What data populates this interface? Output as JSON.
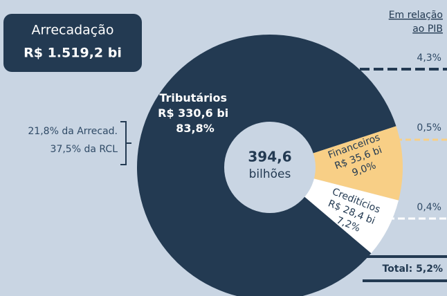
{
  "chart_data": {
    "type": "donut",
    "box_title": "Arrecadação",
    "box_value": "R$ 1.519,2 bi",
    "center_value": "394,6",
    "center_unit": "bilhões",
    "left_notes": [
      "21,8% da Arrecad.",
      "37,5% da RCL"
    ],
    "pib_header": [
      "Em relação",
      "ao PIB"
    ],
    "categories": [
      "Tributários",
      "Financeiros",
      "Creditícios"
    ],
    "values": [
      330.6,
      35.6,
      28.4
    ],
    "value_labels": [
      "R$ 330,6 bi",
      "R$ 35,6 bi",
      "R$ 28,4 bi"
    ],
    "percent_labels": [
      "83,8%",
      "9,0%",
      "7,2%"
    ],
    "colors": [
      "#233a52",
      "#f8cf86",
      "#ffffff"
    ],
    "pib_labels": [
      "4,3%",
      "0,5%",
      "0,4%"
    ],
    "pib_total": "Total: 5,2%"
  }
}
